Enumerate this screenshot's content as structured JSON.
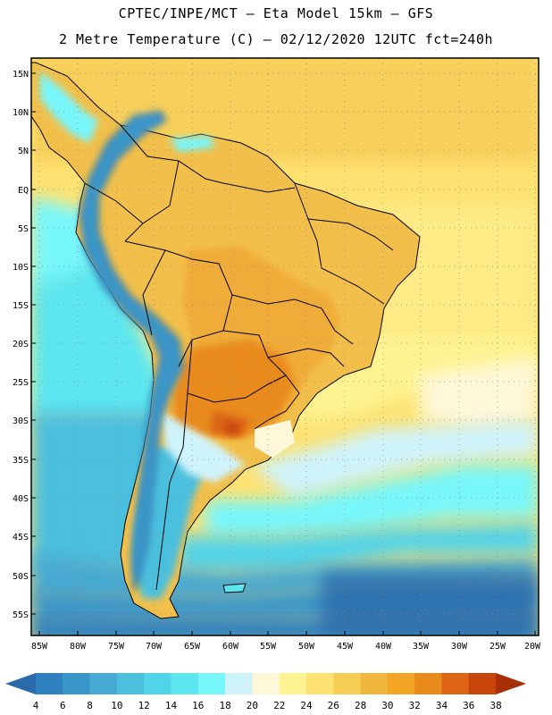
{
  "header": {
    "line1": "CPTEC/INPE/MCT –   Eta Model 15km – GFS",
    "line2": "2 Metre Temperature (C) – 02/12/2020 12UTC fct=240h"
  },
  "map": {
    "lat_labels": [
      "15N",
      "10N",
      "5N",
      "EQ",
      "5S",
      "10S",
      "15S",
      "20S",
      "25S",
      "30S",
      "35S",
      "40S",
      "45S",
      "50S",
      "55S"
    ],
    "lon_labels": [
      "85W",
      "80W",
      "75W",
      "70W",
      "65W",
      "60W",
      "55W",
      "50W",
      "45W",
      "40W",
      "35W",
      "30W",
      "25W",
      "20W"
    ]
  },
  "colorbar": {
    "labels": [
      "4",
      "6",
      "8",
      "10",
      "12",
      "14",
      "16",
      "18",
      "20",
      "22",
      "24",
      "26",
      "28",
      "30",
      "32",
      "34",
      "36",
      "38"
    ],
    "colors": [
      "#2a6aab",
      "#2f80bf",
      "#3a96c8",
      "#46aad3",
      "#4cc0de",
      "#52d4e8",
      "#5ce6f0",
      "#78f7fa",
      "#cff3fb",
      "#fff8d8",
      "#fdf391",
      "#fde271",
      "#f5cd52",
      "#f0b73c",
      "#f3a623",
      "#e98a1b",
      "#dc6414",
      "#c84408",
      "#a82e04"
    ]
  }
}
